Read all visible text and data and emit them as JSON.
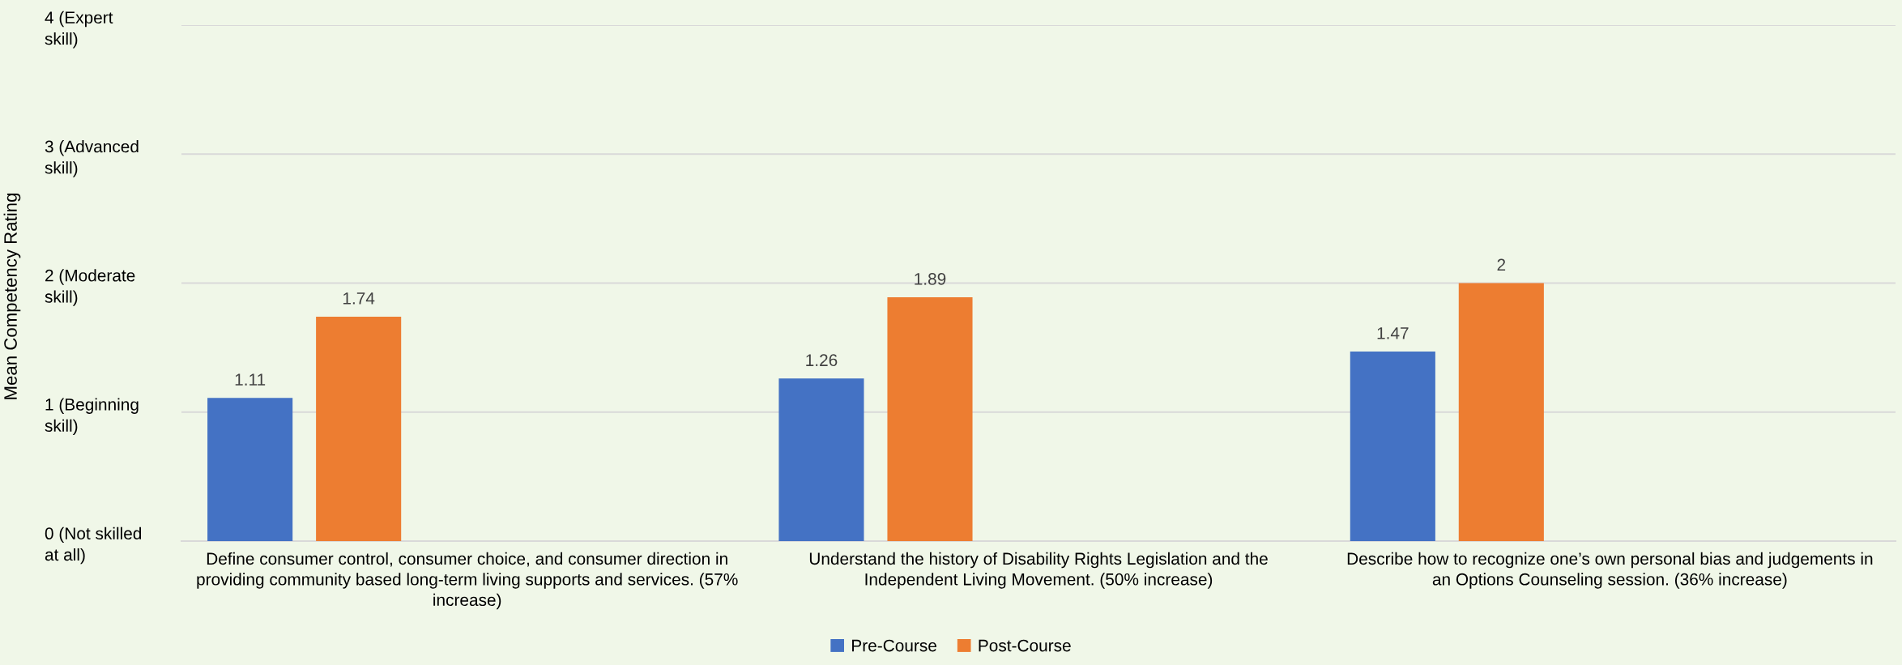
{
  "chart_data": {
    "type": "bar",
    "ylabel": "Mean Competency Rating",
    "categories": [
      "Define consumer control, consumer choice, and consumer direction in\nproviding community based long-term living supports and services. (57%\nincrease)",
      "Understand the history of Disability Rights Legislation and the\nIndependent Living Movement. (50% increase)",
      "Describe how to recognize one’s own personal bias and judgements in\nan Options Counseling session. (36% increase)"
    ],
    "series": [
      {
        "name": "Pre-Course",
        "color": "#4472c4",
        "values": [
          1.11,
          1.26,
          1.47
        ]
      },
      {
        "name": "Post-Course",
        "color": "#ed7d31",
        "values": [
          1.74,
          1.89,
          2
        ]
      }
    ],
    "ylim": [
      0,
      4
    ],
    "yticks": [
      {
        "value": 0,
        "label": "0 (Not skilled\nat all)"
      },
      {
        "value": 1,
        "label": "1 (Beginning\nskill)"
      },
      {
        "value": 2,
        "label": "2 (Moderate\nskill)"
      },
      {
        "value": 3,
        "label": "3 (Advanced\nskill)"
      },
      {
        "value": 4,
        "label": "4 (Expert\nskill)"
      }
    ],
    "grid": "y",
    "legend": "bottom",
    "data_labels": true
  }
}
